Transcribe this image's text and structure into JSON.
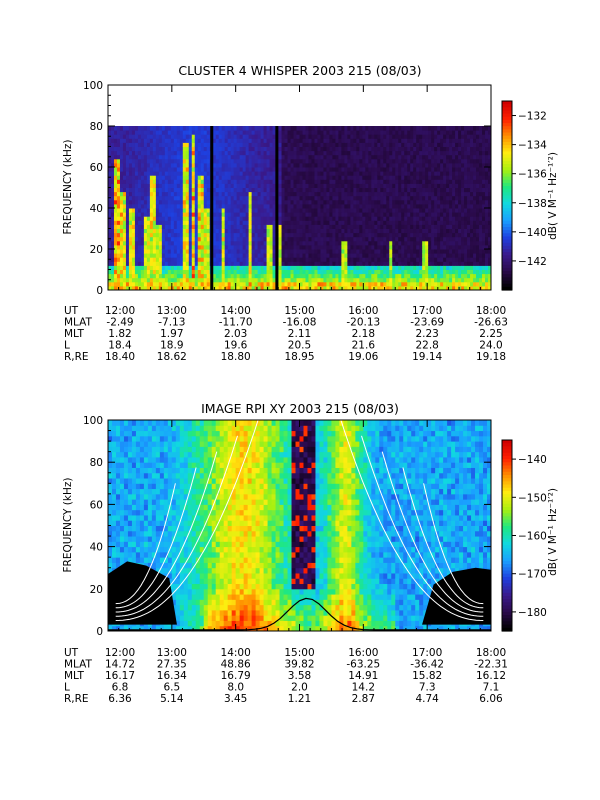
{
  "chart_data": [
    {
      "type": "heatmap",
      "title": "CLUSTER 4 WHISPER 2003 215 (08/03)",
      "ylabel": "FREQUENCY (kHz)",
      "ylim": [
        0,
        100
      ],
      "yticks": [
        "0",
        "20",
        "40",
        "60",
        "80",
        "100"
      ],
      "data_frequency_max": 80,
      "xticks": [
        "12:00",
        "13:00",
        "14:00",
        "15:00",
        "16:00",
        "17:00",
        "18:00"
      ],
      "colorbar": {
        "unit_label": "dB( V M⁻¹ Hz⁻¹′²)",
        "range": [
          -144,
          -131
        ],
        "ticks": [
          "-132",
          "-134",
          "-136",
          "-138",
          "-140",
          "-142"
        ]
      },
      "ephemeris": [
        {
          "label": "UT",
          "values": [
            "12:00",
            "13:00",
            "14:00",
            "15:00",
            "16:00",
            "17:00",
            "18:00"
          ]
        },
        {
          "label": "MLAT",
          "values": [
            "-2.49",
            "-7.13",
            "-11.70",
            "-16.08",
            "-20.13",
            "-23.69",
            "-26.63"
          ]
        },
        {
          "label": "MLT",
          "values": [
            "1.82",
            "1.97",
            "2.03",
            "2.11",
            "2.18",
            "2.23",
            "2.25"
          ]
        },
        {
          "label": "L",
          "values": [
            "18.4",
            "18.9",
            "19.6",
            "20.5",
            "21.6",
            "22.8",
            "24.0"
          ]
        },
        {
          "label": "R,RE",
          "values": [
            "18.40",
            "18.62",
            "18.80",
            "18.95",
            "19.06",
            "19.14",
            "19.18"
          ]
        }
      ]
    },
    {
      "type": "heatmap",
      "title": "IMAGE RPI XY 2003 215 (08/03)",
      "ylabel": "FREQUENCY (kHz)",
      "ylim": [
        0,
        100
      ],
      "yticks": [
        "0",
        "20",
        "40",
        "60",
        "80",
        "100"
      ],
      "xticks": [
        "12:00",
        "13:00",
        "14:00",
        "15:00",
        "16:00",
        "17:00",
        "18:00"
      ],
      "colorbar": {
        "unit_label": "dB( V M⁻¹ Hz⁻¹′²)",
        "range": [
          -185,
          -135
        ],
        "ticks": [
          "-140",
          "-150",
          "-160",
          "-170",
          "-180"
        ]
      },
      "ephemeris": [
        {
          "label": "UT",
          "values": [
            "12:00",
            "13:00",
            "14:00",
            "15:00",
            "16:00",
            "17:00",
            "18:00"
          ]
        },
        {
          "label": "MLAT",
          "values": [
            "14.72",
            "27.35",
            "48.86",
            "39.82",
            "-63.25",
            "-36.42",
            "-22.31"
          ]
        },
        {
          "label": "MLT",
          "values": [
            "16.17",
            "16.34",
            "16.79",
            "3.58",
            "14.91",
            "15.82",
            "16.12"
          ]
        },
        {
          "label": "L",
          "values": [
            "6.8",
            "6.5",
            "8.0",
            "2.0",
            "14.2",
            "7.3",
            "7.1"
          ]
        },
        {
          "label": "R,RE",
          "values": [
            "6.36",
            "5.14",
            "3.45",
            "1.21",
            "2.87",
            "4.74",
            "6.06"
          ]
        }
      ]
    }
  ],
  "colormap": [
    "#000000",
    "#2a0a4a",
    "#3a1a8c",
    "#1e40e0",
    "#1aa0ff",
    "#10d8e0",
    "#20e880",
    "#a8f010",
    "#ffee10",
    "#ff9000",
    "#ff2000",
    "#d00000"
  ]
}
